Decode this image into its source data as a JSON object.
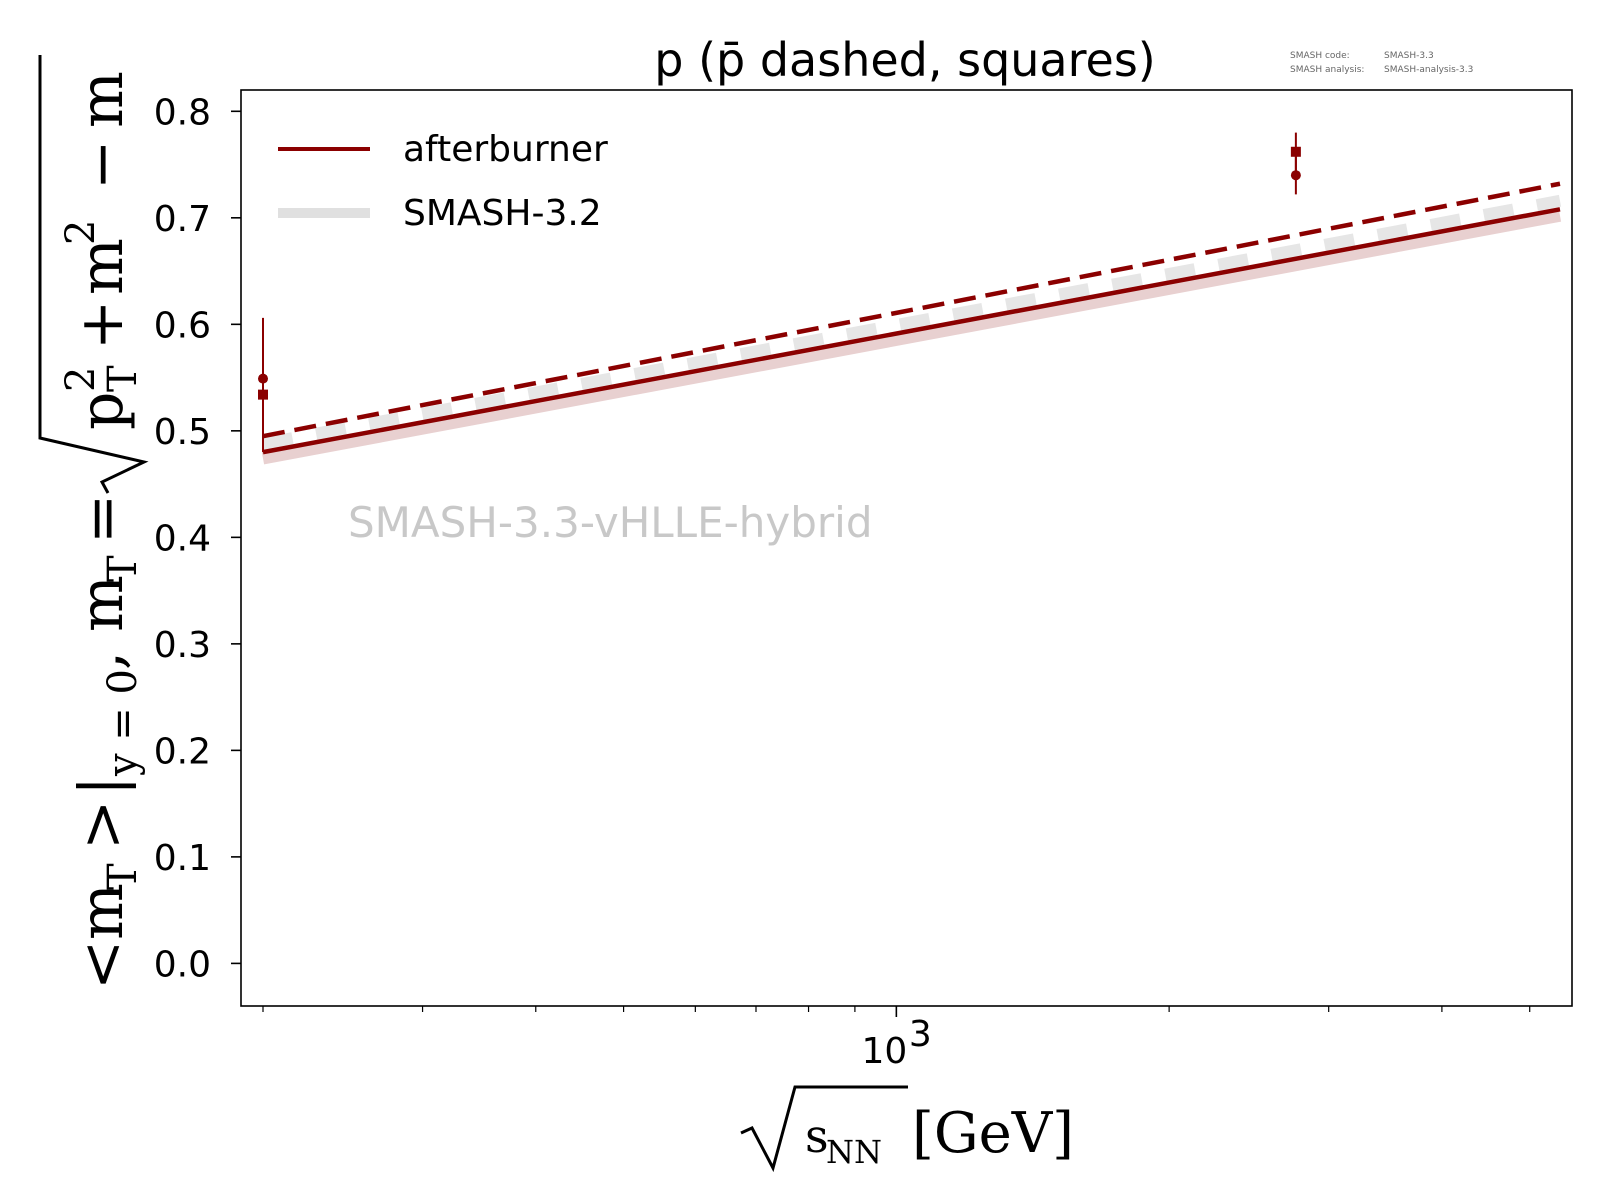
{
  "chart_data": {
    "type": "line",
    "title": "p (p̄ dashed, squares)",
    "meta_lines": [
      {
        "label": "SMASH code:",
        "value": "SMASH-3.3"
      },
      {
        "label": "SMASH analysis:",
        "value": "SMASH-analysis-3.3"
      }
    ],
    "watermark": "SMASH-3.3-vHLLE-hybrid",
    "x_scale": "log",
    "xlim": [
      200,
      5400
    ],
    "ylim": [
      -0.04,
      0.82
    ],
    "x_tick_label": {
      "value": 1000,
      "base": "10",
      "exp": "3"
    },
    "x_minor_ticks": [
      200,
      300,
      400,
      500,
      600,
      700,
      800,
      900,
      2000,
      3000,
      4000,
      5000
    ],
    "y_ticks": [
      0.0,
      0.1,
      0.2,
      0.3,
      0.4,
      0.5,
      0.6,
      0.7,
      0.8
    ],
    "y_tick_labels": [
      "0.0",
      "0.1",
      "0.2",
      "0.3",
      "0.4",
      "0.5",
      "0.6",
      "0.7",
      "0.8"
    ],
    "xlabel": "√sNN [GeV]",
    "ylabel": "<mT>|y=0, mT = √(pT² + m²) − m",
    "xlabel_parts": {
      "s": "s",
      "nn": "NN",
      "unit": "[GeV]"
    },
    "ylabel_parts": {
      "lt": "<",
      "m": "m",
      "T": "T",
      "gt": ">",
      "bar": "|",
      "ysub": "y = 0",
      "comma": ",",
      "mT_m": "m",
      "mT_T": "T",
      "eq": "=",
      "p": "p",
      "T2": "T",
      "two": "2",
      "plus": "+",
      "m2": "m",
      "two2": "2",
      "minus": "−",
      "mend": "m"
    },
    "legend": [
      {
        "label": "afterburner",
        "color": "#8b0000",
        "style": "solid"
      },
      {
        "label": "SMASH-3.2",
        "color": "#e0e0e0",
        "style": "band"
      }
    ],
    "series": [
      {
        "name": "afterburner (p)",
        "color": "#8b0000",
        "style": "solid",
        "x": [
          200,
          5400
        ],
        "y": [
          0.48,
          0.708
        ]
      },
      {
        "name": "afterburner (p̄)",
        "color": "#8b0000",
        "style": "dashed",
        "x": [
          200,
          5400
        ],
        "y": [
          0.495,
          0.732
        ]
      },
      {
        "name": "SMASH-3.2 (p)",
        "color": "#e8d0d0",
        "style": "band",
        "x": [
          200,
          5400
        ],
        "y": [
          0.474,
          0.702
        ]
      },
      {
        "name": "SMASH-3.2 (p̄)",
        "color": "#e6e6e6",
        "style": "band-dashed",
        "x": [
          200,
          5400
        ],
        "y": [
          0.488,
          0.716
        ]
      }
    ],
    "data_points": [
      {
        "name": "p",
        "marker": "circle",
        "color": "#8b0000",
        "x": 200,
        "y": 0.549,
        "yerr": 0.0
      },
      {
        "name": "p̄",
        "marker": "square",
        "color": "#8b0000",
        "x": 200,
        "y": 0.534,
        "yerr_low": 0.054,
        "yerr_high": 0.072
      },
      {
        "name": "p",
        "marker": "circle",
        "color": "#8b0000",
        "x": 2760,
        "y": 0.74,
        "yerr": 0.018
      },
      {
        "name": "p̄",
        "marker": "square",
        "color": "#8b0000",
        "x": 2760,
        "y": 0.762,
        "yerr": 0.018
      }
    ]
  }
}
